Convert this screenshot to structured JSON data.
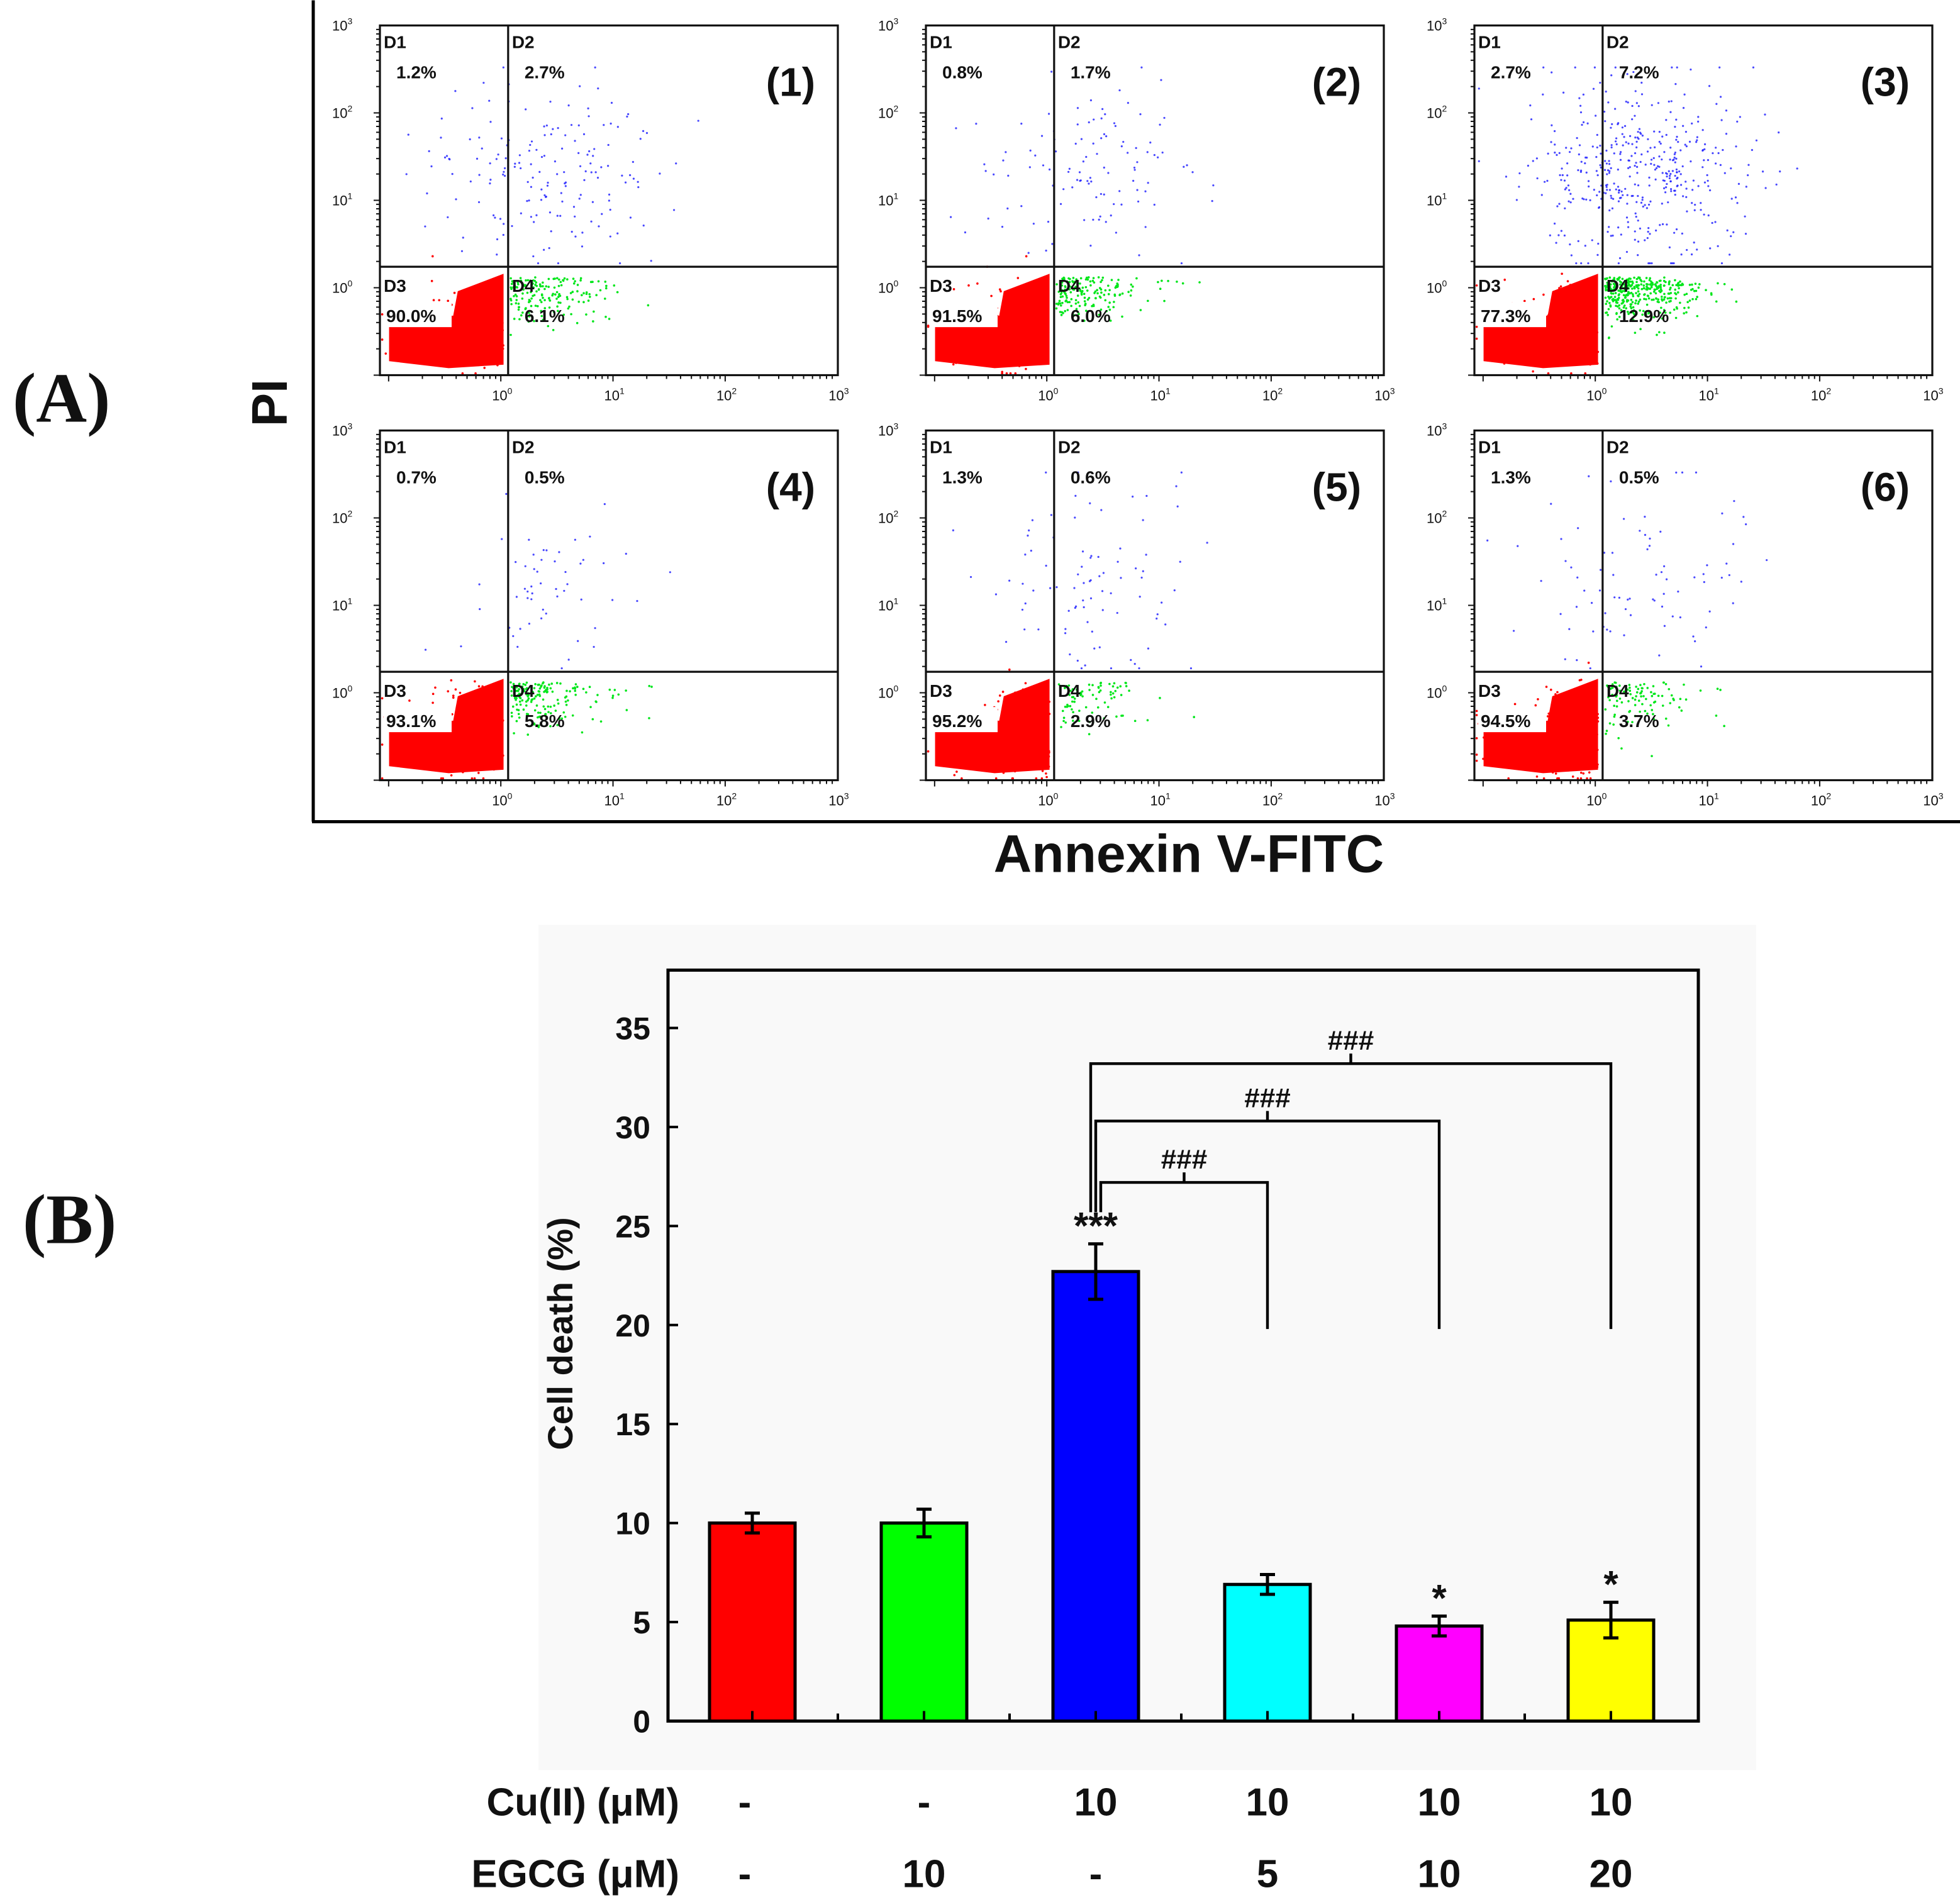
{
  "panel_labels": {
    "a": "(A)",
    "b": "(B)"
  },
  "flow": {
    "y_axis_label": "PI",
    "x_axis_label": "Annexin V-FITC",
    "tick_base": "10",
    "tick_exponents": [
      "0",
      "1",
      "2",
      "3"
    ],
    "quadrant_names": [
      "D1",
      "D2",
      "D3",
      "D4"
    ],
    "colors": {
      "live": "#ff0000",
      "necrotic": "#1a1aff",
      "apoptotic": "#00e61a"
    },
    "panels": [
      {
        "label": "(1)",
        "D1": "1.2%",
        "D2": "2.7%",
        "D3": "90.0%",
        "D4": "6.1%"
      },
      {
        "label": "(2)",
        "D1": "0.8%",
        "D2": "1.7%",
        "D3": "91.5%",
        "D4": "6.0%"
      },
      {
        "label": "(3)",
        "D1": "2.7%",
        "D2": "7.2%",
        "D3": "77.3%",
        "D4": "12.9%"
      },
      {
        "label": "(4)",
        "D1": "0.7%",
        "D2": "0.5%",
        "D3": "93.1%",
        "D4": "5.8%"
      },
      {
        "label": "(5)",
        "D1": "1.3%",
        "D2": "0.6%",
        "D3": "95.2%",
        "D4": "2.9%"
      },
      {
        "label": "(6)",
        "D1": "1.3%",
        "D2": "0.5%",
        "D3": "94.5%",
        "D4": "3.7%"
      }
    ]
  },
  "chart_data": {
    "type": "bar",
    "title": "",
    "xlabel": "",
    "ylabel": "Cell death (%)",
    "ylim": [
      0,
      38
    ],
    "yticks": [
      0,
      5,
      10,
      15,
      20,
      25,
      30,
      35
    ],
    "ytick_labels": [
      "0",
      "5",
      "10",
      "15",
      "20",
      "25",
      "30",
      "35"
    ],
    "values": [
      10.0,
      10.0,
      22.7,
      6.9,
      4.8,
      5.1
    ],
    "errors": [
      0.5,
      0.7,
      1.4,
      0.5,
      0.5,
      0.9
    ],
    "colors": [
      "#ff0000",
      "#00ff00",
      "#0000ff",
      "#00ffff",
      "#ff00ff",
      "#ffff00"
    ],
    "significance": [
      "",
      "",
      "***",
      "",
      "*",
      "*"
    ],
    "comparisons": [
      {
        "from": 2,
        "to": 3,
        "y": 27.2,
        "label": "###"
      },
      {
        "from": 2,
        "to": 4,
        "y": 30.3,
        "label": "###"
      },
      {
        "from": 2,
        "to": 5,
        "y": 33.2,
        "label": "###"
      }
    ],
    "treatments": [
      {
        "name": "Cu(II) (μM)",
        "values": [
          "-",
          "-",
          "10",
          "10",
          "10",
          "10"
        ]
      },
      {
        "name": "EGCG (μM)",
        "values": [
          "-",
          "10",
          "-",
          "5",
          "10",
          "20"
        ]
      }
    ]
  }
}
